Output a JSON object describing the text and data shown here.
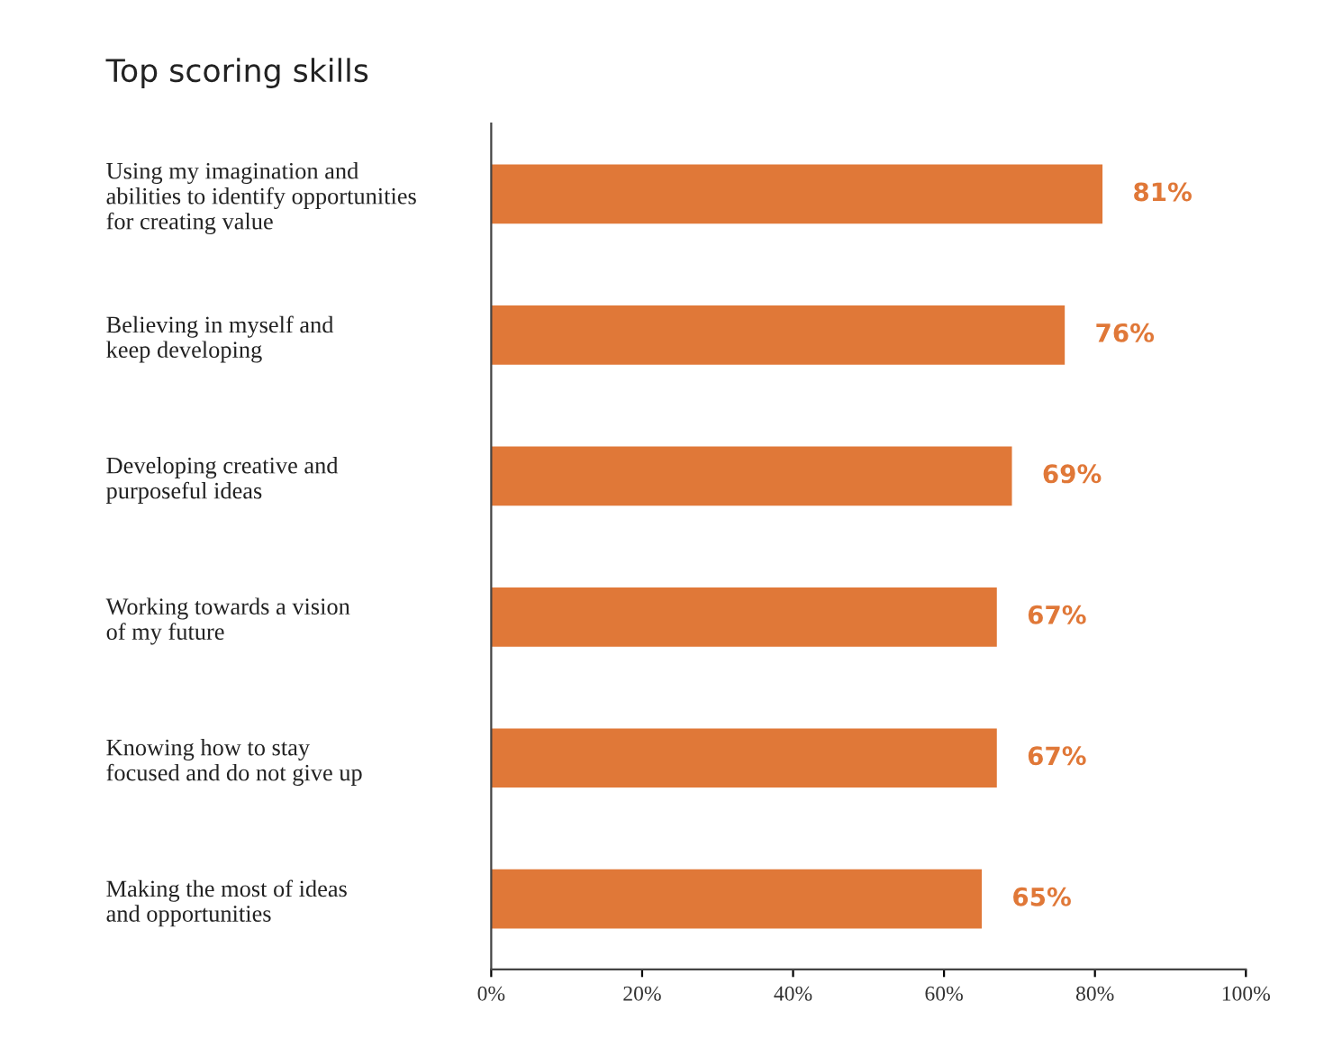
{
  "chart_data": {
    "type": "bar",
    "orientation": "horizontal",
    "title": "Top scoring skills",
    "categories": [
      "Using my imagination and\nabilities to identify opportunities\nfor creating value",
      "Believing in myself and\nkeep developing",
      "Developing creative and\npurposeful ideas",
      "Working towards a vision\nof my future",
      "Knowing how to stay\nfocused and do not give up",
      "Making the most of ideas\nand opportunities"
    ],
    "values": [
      81,
      76,
      69,
      67,
      67,
      65
    ],
    "value_labels": [
      "81%",
      "76%",
      "69%",
      "67%",
      "67%",
      "65%"
    ],
    "color": "#e07838",
    "xlim": [
      0,
      100
    ],
    "xticks": [
      {
        "value": 0,
        "label": "0%"
      },
      {
        "value": 20,
        "label": "20%"
      },
      {
        "value": 40,
        "label": "40%"
      },
      {
        "value": 60,
        "label": "60%"
      },
      {
        "value": 80,
        "label": "80%"
      },
      {
        "value": 100,
        "label": "100%"
      }
    ],
    "grid": false,
    "legend": false
  }
}
